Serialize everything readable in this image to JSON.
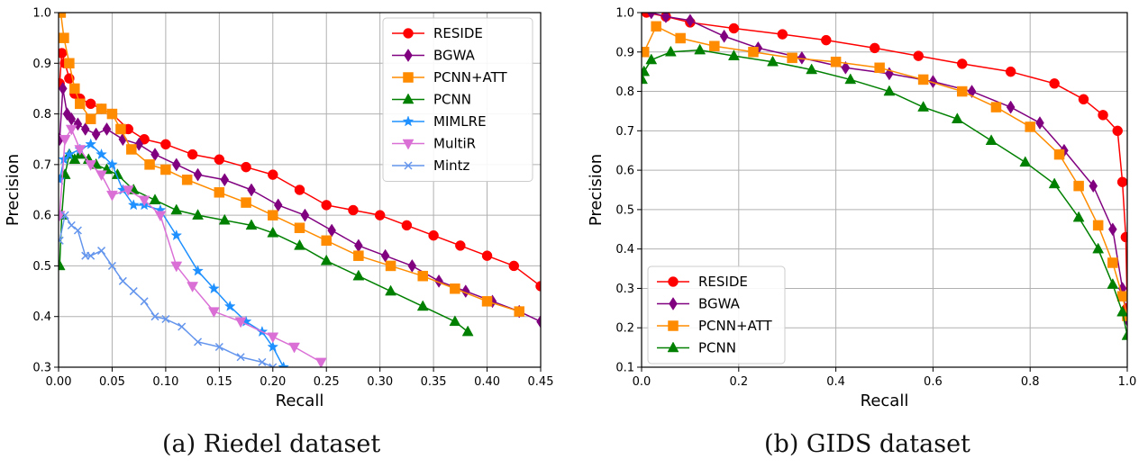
{
  "captions": [
    "(a) Riedel dataset",
    "(b) GIDS dataset"
  ],
  "chart_data": [
    {
      "type": "line",
      "title": "",
      "caption": "(a) Riedel dataset",
      "xlabel": "Recall",
      "ylabel": "Precision",
      "xlim": [
        0.0,
        0.45
      ],
      "ylim": [
        0.3,
        1.0
      ],
      "xticks": [
        0.0,
        0.05,
        0.1,
        0.15,
        0.2,
        0.25,
        0.3,
        0.35,
        0.4,
        0.45
      ],
      "xtick_labels": [
        "0.00",
        "0.05",
        "0.10",
        "0.15",
        "0.20",
        "0.25",
        "0.30",
        "0.35",
        "0.40",
        "0.45"
      ],
      "yticks": [
        0.3,
        0.4,
        0.5,
        0.6,
        0.7,
        0.8,
        0.9,
        1.0
      ],
      "ytick_labels": [
        "0.3",
        "0.4",
        "0.5",
        "0.6",
        "0.7",
        "0.8",
        "0.9",
        "1.0"
      ],
      "grid": true,
      "legend_position": "top-right",
      "series": [
        {
          "name": "RESIDE",
          "color": "#ff0000",
          "marker": "circle",
          "x": [
            0.001,
            0.003,
            0.006,
            0.01,
            0.015,
            0.02,
            0.03,
            0.04,
            0.05,
            0.065,
            0.08,
            0.1,
            0.125,
            0.15,
            0.175,
            0.2,
            0.225,
            0.25,
            0.275,
            0.3,
            0.325,
            0.35,
            0.375,
            0.4,
            0.425,
            0.45
          ],
          "y": [
            0.86,
            0.92,
            0.9,
            0.87,
            0.84,
            0.83,
            0.82,
            0.81,
            0.8,
            0.77,
            0.75,
            0.74,
            0.72,
            0.71,
            0.695,
            0.68,
            0.65,
            0.62,
            0.61,
            0.6,
            0.58,
            0.56,
            0.54,
            0.52,
            0.5,
            0.46
          ]
        },
        {
          "name": "BGWA",
          "color": "#800080",
          "marker": "diamond",
          "x": [
            0.001,
            0.004,
            0.008,
            0.012,
            0.018,
            0.025,
            0.035,
            0.045,
            0.06,
            0.075,
            0.09,
            0.11,
            0.13,
            0.155,
            0.18,
            0.205,
            0.23,
            0.255,
            0.28,
            0.305,
            0.33,
            0.355,
            0.38,
            0.405,
            0.43,
            0.45
          ],
          "y": [
            0.75,
            0.85,
            0.8,
            0.79,
            0.78,
            0.77,
            0.76,
            0.77,
            0.75,
            0.74,
            0.72,
            0.7,
            0.68,
            0.67,
            0.65,
            0.62,
            0.6,
            0.57,
            0.54,
            0.52,
            0.5,
            0.47,
            0.45,
            0.43,
            0.41,
            0.39
          ]
        },
        {
          "name": "PCNN+ATT",
          "color": "#ff8c00",
          "marker": "square",
          "x": [
            0.002,
            0.005,
            0.01,
            0.015,
            0.02,
            0.03,
            0.04,
            0.05,
            0.058,
            0.068,
            0.085,
            0.1,
            0.12,
            0.15,
            0.175,
            0.2,
            0.225,
            0.25,
            0.28,
            0.31,
            0.34,
            0.37,
            0.4,
            0.43
          ],
          "y": [
            1.0,
            0.95,
            0.9,
            0.85,
            0.82,
            0.79,
            0.81,
            0.8,
            0.77,
            0.73,
            0.7,
            0.69,
            0.67,
            0.645,
            0.625,
            0.6,
            0.575,
            0.55,
            0.52,
            0.5,
            0.48,
            0.455,
            0.43,
            0.41
          ]
        },
        {
          "name": "PCNN",
          "color": "#008000",
          "marker": "triangle-up",
          "x": [
            0.001,
            0.003,
            0.006,
            0.01,
            0.015,
            0.02,
            0.028,
            0.035,
            0.045,
            0.055,
            0.07,
            0.09,
            0.11,
            0.13,
            0.155,
            0.18,
            0.2,
            0.225,
            0.25,
            0.28,
            0.31,
            0.34,
            0.37,
            0.382
          ],
          "y": [
            0.5,
            0.6,
            0.68,
            0.72,
            0.71,
            0.72,
            0.71,
            0.7,
            0.69,
            0.68,
            0.65,
            0.63,
            0.61,
            0.6,
            0.59,
            0.58,
            0.565,
            0.54,
            0.51,
            0.48,
            0.45,
            0.42,
            0.39,
            0.37
          ]
        },
        {
          "name": "MIMLRE",
          "color": "#1e90ff",
          "marker": "star",
          "x": [
            0.001,
            0.005,
            0.01,
            0.02,
            0.03,
            0.04,
            0.05,
            0.06,
            0.07,
            0.08,
            0.095,
            0.11,
            0.13,
            0.145,
            0.16,
            0.175,
            0.19,
            0.2,
            0.21
          ],
          "y": [
            0.67,
            0.71,
            0.72,
            0.73,
            0.74,
            0.72,
            0.7,
            0.65,
            0.62,
            0.62,
            0.61,
            0.56,
            0.49,
            0.455,
            0.42,
            0.39,
            0.37,
            0.34,
            0.3
          ]
        },
        {
          "name": "MultiR",
          "color": "#da70d6",
          "marker": "triangle-down",
          "x": [
            0.001,
            0.006,
            0.012,
            0.02,
            0.03,
            0.04,
            0.05,
            0.065,
            0.08,
            0.095,
            0.11,
            0.125,
            0.145,
            0.17,
            0.2,
            0.22,
            0.245
          ],
          "y": [
            0.6,
            0.75,
            0.77,
            0.73,
            0.7,
            0.68,
            0.64,
            0.65,
            0.63,
            0.6,
            0.5,
            0.46,
            0.41,
            0.39,
            0.36,
            0.34,
            0.31
          ]
        },
        {
          "name": "Mintz",
          "color": "#6495ed",
          "marker": "x",
          "x": [
            0.001,
            0.006,
            0.012,
            0.018,
            0.025,
            0.03,
            0.04,
            0.05,
            0.06,
            0.07,
            0.08,
            0.09,
            0.1,
            0.115,
            0.13,
            0.15,
            0.17,
            0.19,
            0.2
          ],
          "y": [
            0.55,
            0.6,
            0.58,
            0.57,
            0.52,
            0.52,
            0.53,
            0.5,
            0.47,
            0.45,
            0.43,
            0.4,
            0.395,
            0.38,
            0.35,
            0.34,
            0.32,
            0.31,
            0.3
          ]
        }
      ]
    },
    {
      "type": "line",
      "title": "",
      "caption": "(b) GIDS dataset",
      "xlabel": "Recall",
      "ylabel": "Precision",
      "xlim": [
        0.0,
        1.0
      ],
      "ylim": [
        0.1,
        1.0
      ],
      "xticks": [
        0.0,
        0.2,
        0.4,
        0.6,
        0.8,
        1.0
      ],
      "xtick_labels": [
        "0.0",
        "0.2",
        "0.4",
        "0.6",
        "0.8",
        "1.0"
      ],
      "yticks": [
        0.1,
        0.2,
        0.3,
        0.4,
        0.5,
        0.6,
        0.7,
        0.8,
        0.9,
        1.0
      ],
      "ytick_labels": [
        "0.1",
        "0.2",
        "0.3",
        "0.4",
        "0.5",
        "0.6",
        "0.7",
        "0.8",
        "0.9",
        "1.0"
      ],
      "grid": true,
      "legend_position": "bottom-left",
      "series": [
        {
          "name": "RESIDE",
          "color": "#ff0000",
          "marker": "circle",
          "x": [
            0.01,
            0.05,
            0.1,
            0.19,
            0.29,
            0.38,
            0.48,
            0.57,
            0.66,
            0.76,
            0.85,
            0.91,
            0.95,
            0.98,
            0.99,
            0.997,
            1.0
          ],
          "y": [
            1.0,
            0.99,
            0.975,
            0.96,
            0.945,
            0.93,
            0.91,
            0.89,
            0.87,
            0.85,
            0.82,
            0.78,
            0.74,
            0.7,
            0.57,
            0.43,
            0.25
          ]
        },
        {
          "name": "BGWA",
          "color": "#800080",
          "marker": "diamond",
          "x": [
            0.02,
            0.05,
            0.1,
            0.17,
            0.24,
            0.33,
            0.42,
            0.51,
            0.6,
            0.68,
            0.76,
            0.82,
            0.87,
            0.93,
            0.97,
            0.99,
            1.0
          ],
          "y": [
            1.0,
            0.99,
            0.98,
            0.94,
            0.91,
            0.885,
            0.86,
            0.845,
            0.825,
            0.8,
            0.76,
            0.72,
            0.65,
            0.56,
            0.45,
            0.3,
            0.22
          ]
        },
        {
          "name": "PCNN+ATT",
          "color": "#ff8c00",
          "marker": "square",
          "x": [
            0.005,
            0.03,
            0.08,
            0.15,
            0.23,
            0.31,
            0.4,
            0.49,
            0.58,
            0.66,
            0.73,
            0.8,
            0.86,
            0.9,
            0.94,
            0.97,
            0.99,
            1.0
          ],
          "y": [
            0.9,
            0.965,
            0.935,
            0.915,
            0.9,
            0.885,
            0.875,
            0.86,
            0.83,
            0.8,
            0.76,
            0.71,
            0.64,
            0.56,
            0.46,
            0.365,
            0.28,
            0.23
          ]
        },
        {
          "name": "PCNN",
          "color": "#008000",
          "marker": "triangle-up",
          "x": [
            0.001,
            0.005,
            0.02,
            0.06,
            0.12,
            0.19,
            0.27,
            0.35,
            0.43,
            0.51,
            0.58,
            0.65,
            0.72,
            0.79,
            0.85,
            0.9,
            0.94,
            0.97,
            0.99,
            1.0
          ],
          "y": [
            0.83,
            0.85,
            0.88,
            0.9,
            0.905,
            0.89,
            0.875,
            0.855,
            0.83,
            0.8,
            0.76,
            0.73,
            0.675,
            0.62,
            0.565,
            0.48,
            0.4,
            0.31,
            0.24,
            0.18
          ]
        }
      ]
    }
  ]
}
